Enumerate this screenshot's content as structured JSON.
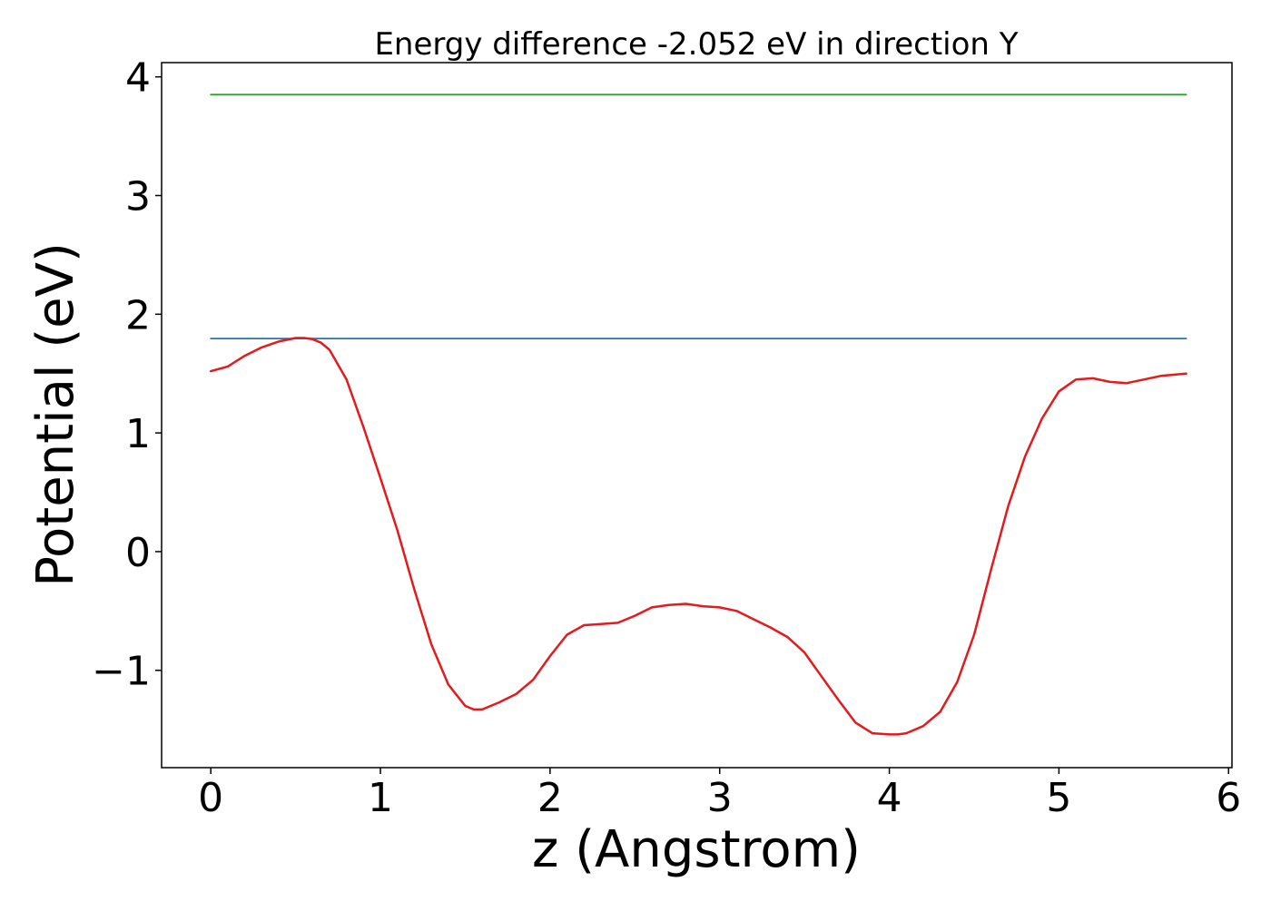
{
  "chart_data": {
    "type": "line",
    "title": "Energy difference -2.052 eV in direction Y",
    "xlabel": "z (Angstrom)",
    "ylabel": "Potential (eV)",
    "xlim": [
      -0.29,
      6.02
    ],
    "ylim": [
      -1.82,
      4.12
    ],
    "xticks": [
      0,
      1,
      2,
      3,
      4,
      5,
      6
    ],
    "xtick_labels": [
      "0",
      "1",
      "2",
      "3",
      "4",
      "5",
      "6"
    ],
    "yticks": [
      -1,
      0,
      1,
      2,
      3,
      4
    ],
    "ytick_labels": [
      "−1",
      "0",
      "1",
      "2",
      "3",
      "4"
    ],
    "grid": false,
    "series": [
      {
        "color": "#1f77b4",
        "x": [
          0,
          5.75
        ],
        "y": [
          1.795,
          1.795
        ]
      },
      {
        "color": "#2ca02c",
        "x": [
          0,
          5.75
        ],
        "y": [
          3.85,
          3.85
        ]
      },
      {
        "color": "#e41a1c",
        "x": [
          0,
          0.1,
          0.2,
          0.3,
          0.4,
          0.5,
          0.55,
          0.6,
          0.65,
          0.7,
          0.8,
          0.9,
          1.0,
          1.1,
          1.2,
          1.3,
          1.4,
          1.5,
          1.55,
          1.6,
          1.7,
          1.8,
          1.9,
          2.0,
          2.1,
          2.2,
          2.3,
          2.4,
          2.5,
          2.6,
          2.7,
          2.8,
          2.9,
          3.0,
          3.1,
          3.2,
          3.3,
          3.4,
          3.5,
          3.6,
          3.7,
          3.8,
          3.9,
          4.0,
          4.05,
          4.1,
          4.2,
          4.3,
          4.4,
          4.5,
          4.6,
          4.7,
          4.8,
          4.9,
          5.0,
          5.1,
          5.2,
          5.3,
          5.4,
          5.5,
          5.6,
          5.75
        ],
        "y": [
          1.52,
          1.56,
          1.65,
          1.72,
          1.77,
          1.8,
          1.8,
          1.79,
          1.76,
          1.7,
          1.45,
          1.05,
          0.62,
          0.18,
          -0.32,
          -0.78,
          -1.12,
          -1.3,
          -1.33,
          -1.33,
          -1.27,
          -1.2,
          -1.08,
          -0.88,
          -0.7,
          -0.62,
          -0.61,
          -0.6,
          -0.54,
          -0.47,
          -0.45,
          -0.44,
          -0.46,
          -0.47,
          -0.5,
          -0.57,
          -0.64,
          -0.72,
          -0.85,
          -1.05,
          -1.25,
          -1.44,
          -1.53,
          -1.54,
          -1.54,
          -1.53,
          -1.47,
          -1.35,
          -1.1,
          -0.7,
          -0.15,
          0.38,
          0.8,
          1.12,
          1.35,
          1.45,
          1.46,
          1.43,
          1.42,
          1.45,
          1.48,
          1.5
        ]
      }
    ]
  }
}
